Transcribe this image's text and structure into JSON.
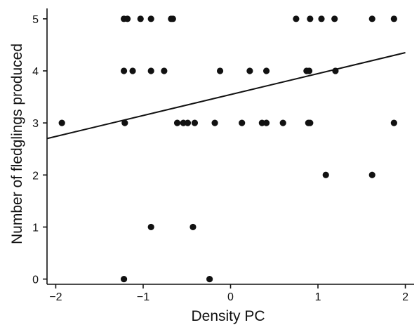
{
  "chart_data": {
    "type": "scatter",
    "title": "",
    "xlabel": "Density PC",
    "ylabel": "Number of fledglings produced",
    "xlim": [
      -2.1,
      2.1
    ],
    "ylim": [
      -0.1,
      5.2
    ],
    "xticks": [
      -2,
      -1,
      0,
      1,
      2
    ],
    "xtick_labels": [
      "−2",
      "−1",
      "0",
      "1",
      "2"
    ],
    "yticks": [
      0,
      1,
      2,
      3,
      4,
      5
    ],
    "ytick_labels": [
      "0",
      "1",
      "2",
      "3",
      "4",
      "5"
    ],
    "grid": false,
    "legend": "none",
    "points": [
      {
        "x": -1.93,
        "y": 3
      },
      {
        "x": -1.22,
        "y": 5
      },
      {
        "x": -1.18,
        "y": 5
      },
      {
        "x": -1.03,
        "y": 5
      },
      {
        "x": -0.91,
        "y": 5
      },
      {
        "x": -0.68,
        "y": 5
      },
      {
        "x": -0.66,
        "y": 5
      },
      {
        "x": 0.75,
        "y": 5
      },
      {
        "x": 0.91,
        "y": 5
      },
      {
        "x": 1.04,
        "y": 5
      },
      {
        "x": 1.19,
        "y": 5
      },
      {
        "x": 1.62,
        "y": 5
      },
      {
        "x": 1.87,
        "y": 5
      },
      {
        "x": -1.22,
        "y": 4
      },
      {
        "x": -1.12,
        "y": 4
      },
      {
        "x": -0.91,
        "y": 4
      },
      {
        "x": -0.76,
        "y": 4
      },
      {
        "x": -0.12,
        "y": 4
      },
      {
        "x": 0.22,
        "y": 4
      },
      {
        "x": 0.41,
        "y": 4
      },
      {
        "x": 0.87,
        "y": 4
      },
      {
        "x": 0.9,
        "y": 4
      },
      {
        "x": 1.2,
        "y": 4
      },
      {
        "x": -1.21,
        "y": 3
      },
      {
        "x": -0.61,
        "y": 3
      },
      {
        "x": -0.54,
        "y": 3
      },
      {
        "x": -0.49,
        "y": 3
      },
      {
        "x": -0.41,
        "y": 3
      },
      {
        "x": -0.18,
        "y": 3
      },
      {
        "x": 0.13,
        "y": 3
      },
      {
        "x": 0.36,
        "y": 3
      },
      {
        "x": 0.41,
        "y": 3
      },
      {
        "x": 0.6,
        "y": 3
      },
      {
        "x": 0.89,
        "y": 3
      },
      {
        "x": 0.91,
        "y": 3
      },
      {
        "x": 1.87,
        "y": 3
      },
      {
        "x": 1.09,
        "y": 2
      },
      {
        "x": 1.62,
        "y": 2
      },
      {
        "x": -0.91,
        "y": 1
      },
      {
        "x": -0.43,
        "y": 1
      },
      {
        "x": -1.22,
        "y": 0
      },
      {
        "x": -0.24,
        "y": 0
      }
    ],
    "trend_line": {
      "x": [
        -2.1,
        2.0
      ],
      "y": [
        2.7,
        4.35
      ]
    }
  }
}
